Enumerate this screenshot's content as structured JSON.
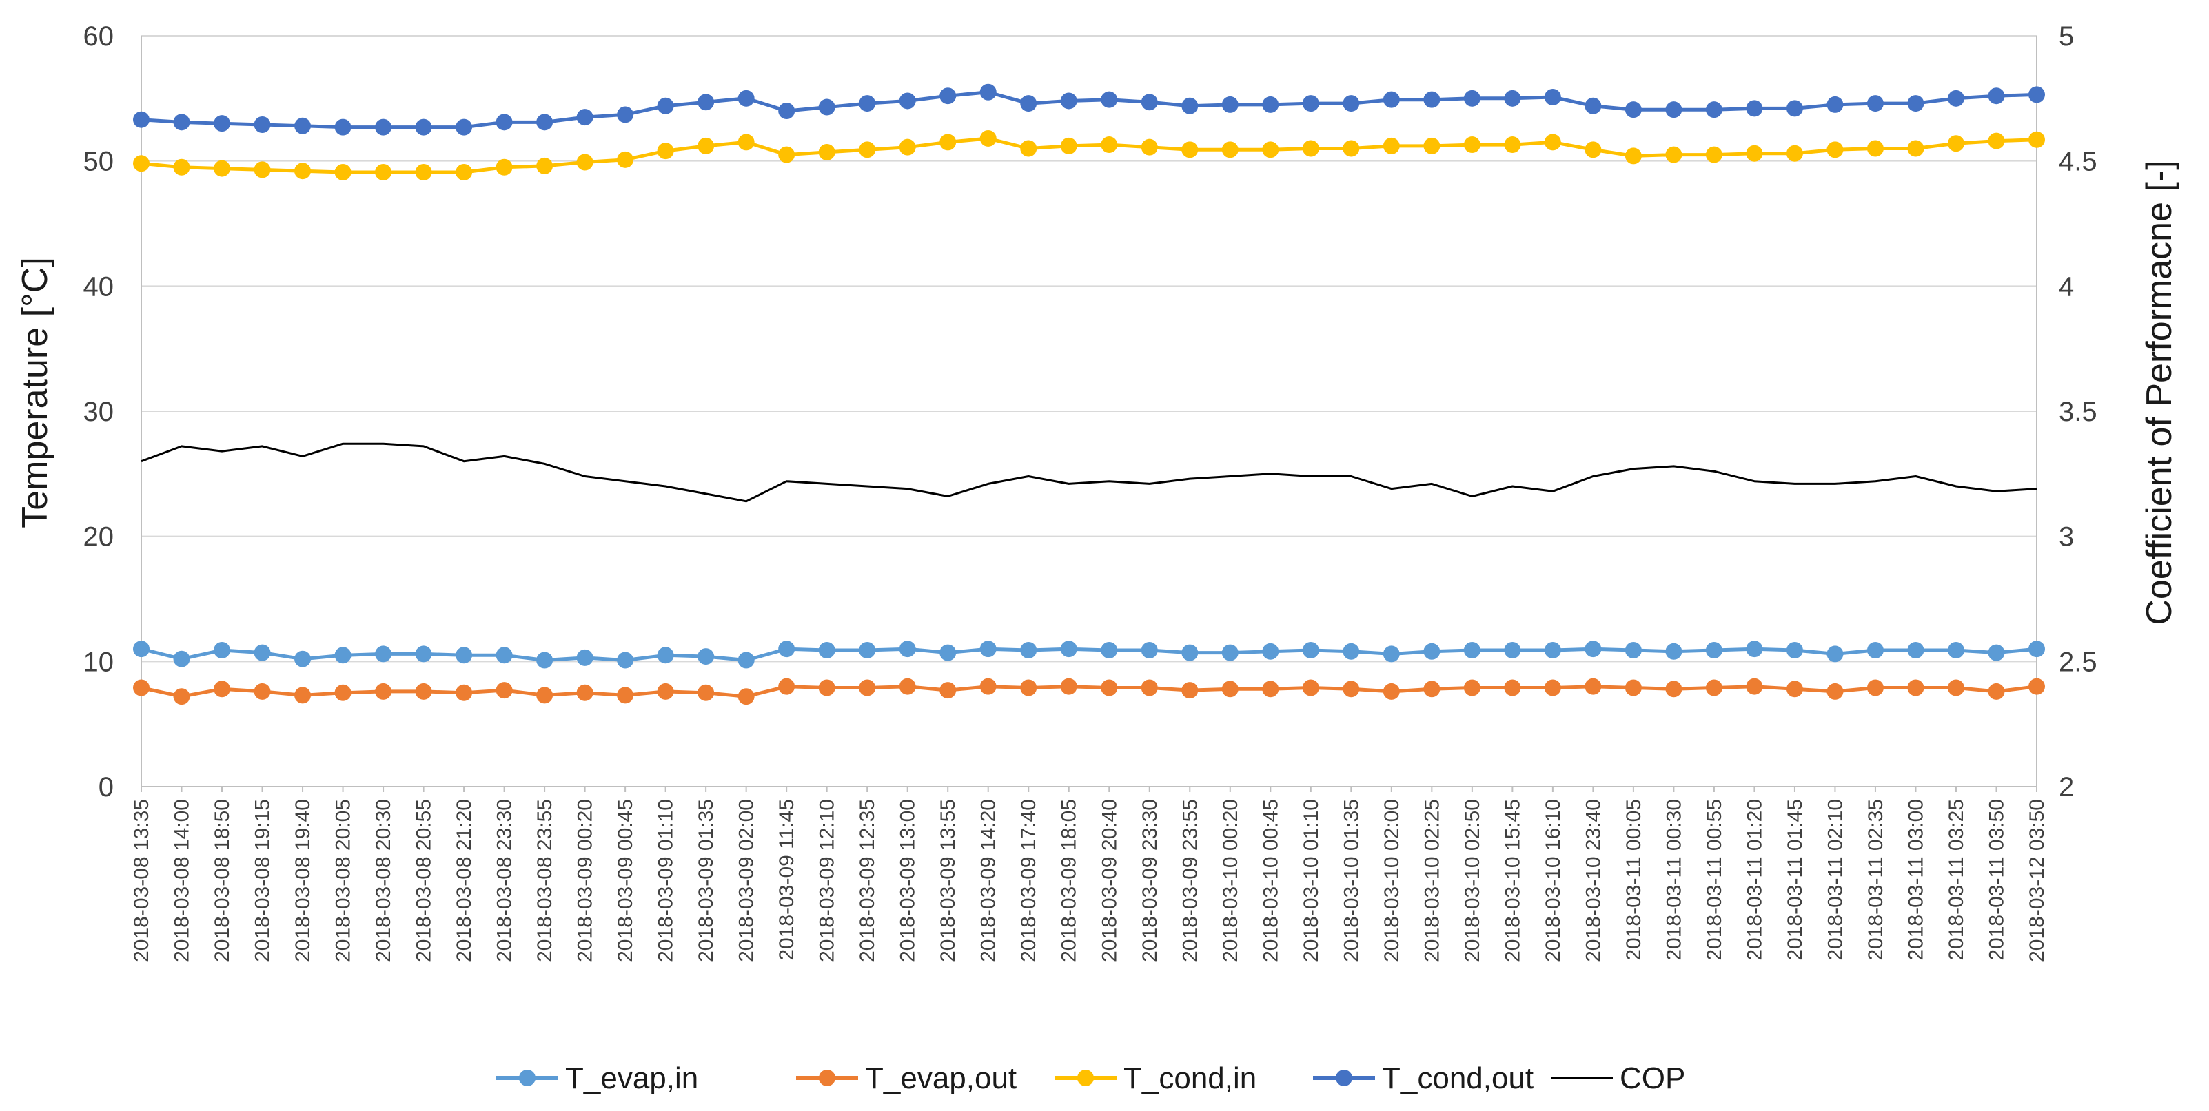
{
  "chart_data": {
    "type": "line",
    "title": "",
    "ylabel": "Temperature [°C]",
    "y2label": "Coefficient of Performacne [-]",
    "ylim": [
      0,
      60
    ],
    "yticks": [
      0,
      10,
      20,
      30,
      40,
      50,
      60
    ],
    "y2lim": [
      2,
      5
    ],
    "y2ticks": [
      "2",
      "2.5",
      "3",
      "3.5",
      "4",
      "4.5",
      "5"
    ],
    "grid": true,
    "legend_position": "bottom",
    "categories": [
      "2018-03-08 13:35",
      "2018-03-08 14:00",
      "2018-03-08 18:50",
      "2018-03-08 19:15",
      "2018-03-08 19:40",
      "2018-03-08 20:05",
      "2018-03-08 20:30",
      "2018-03-08 20:55",
      "2018-03-08 21:20",
      "2018-03-08 23:30",
      "2018-03-08 23:55",
      "2018-03-09 00:20",
      "2018-03-09 00:45",
      "2018-03-09 01:10",
      "2018-03-09 01:35",
      "2018-03-09 02:00",
      "2018-03-09 11:45",
      "2018-03-09 12:10",
      "2018-03-09 12:35",
      "2018-03-09 13:00",
      "2018-03-09 13:55",
      "2018-03-09 14:20",
      "2018-03-09 17:40",
      "2018-03-09 18:05",
      "2018-03-09 20:40",
      "2018-03-09 23:30",
      "2018-03-09 23:55",
      "2018-03-10 00:20",
      "2018-03-10 00:45",
      "2018-03-10 01:10",
      "2018-03-10 01:35",
      "2018-03-10 02:00",
      "2018-03-10 02:25",
      "2018-03-10 02:50",
      "2018-03-10 15:45",
      "2018-03-10 16:10",
      "2018-03-10 23:40",
      "2018-03-11 00:05",
      "2018-03-11 00:30",
      "2018-03-11 00:55",
      "2018-03-11 01:20",
      "2018-03-11 01:45",
      "2018-03-11 02:10",
      "2018-03-11 02:35",
      "2018-03-11 03:00",
      "2018-03-11 03:25",
      "2018-03-11 03:50",
      "2018-03-12 03:50"
    ],
    "series": [
      {
        "name": "T_evap,in",
        "axis": "left",
        "color": "#5B9BD5",
        "marker": true,
        "values": [
          11.0,
          10.2,
          10.9,
          10.7,
          10.2,
          10.5,
          10.6,
          10.6,
          10.5,
          10.5,
          10.1,
          10.3,
          10.1,
          10.5,
          10.4,
          10.1,
          11.0,
          10.9,
          10.9,
          11.0,
          10.7,
          11.0,
          10.9,
          11.0,
          10.9,
          10.9,
          10.7,
          10.7,
          10.8,
          10.9,
          10.8,
          10.6,
          10.8,
          10.9,
          10.9,
          10.9,
          11.0,
          10.9,
          10.8,
          10.9,
          11.0,
          10.9,
          10.6,
          10.9,
          10.9,
          10.9,
          10.7,
          11.0
        ]
      },
      {
        "name": "T_evap,out",
        "axis": "left",
        "color": "#ED7D31",
        "marker": true,
        "values": [
          7.9,
          7.2,
          7.8,
          7.6,
          7.3,
          7.5,
          7.6,
          7.6,
          7.5,
          7.7,
          7.3,
          7.5,
          7.3,
          7.6,
          7.5,
          7.2,
          8.0,
          7.9,
          7.9,
          8.0,
          7.7,
          8.0,
          7.9,
          8.0,
          7.9,
          7.9,
          7.7,
          7.8,
          7.8,
          7.9,
          7.8,
          7.6,
          7.8,
          7.9,
          7.9,
          7.9,
          8.0,
          7.9,
          7.8,
          7.9,
          8.0,
          7.8,
          7.6,
          7.9,
          7.9,
          7.9,
          7.6,
          8.0
        ]
      },
      {
        "name": "T_cond,in",
        "axis": "left",
        "color": "#FFC000",
        "marker": true,
        "values": [
          49.8,
          49.5,
          49.4,
          49.3,
          49.2,
          49.1,
          49.1,
          49.1,
          49.1,
          49.5,
          49.6,
          49.9,
          50.1,
          50.8,
          51.2,
          51.5,
          50.5,
          50.7,
          50.9,
          51.1,
          51.5,
          51.8,
          51.0,
          51.2,
          51.3,
          51.1,
          50.9,
          50.9,
          50.9,
          51.0,
          51.0,
          51.2,
          51.2,
          51.3,
          51.3,
          51.5,
          50.9,
          50.4,
          50.5,
          50.5,
          50.6,
          50.6,
          50.9,
          51.0,
          51.0,
          51.4,
          51.6,
          51.7
        ]
      },
      {
        "name": "T_cond,out",
        "axis": "left",
        "color": "#4472C4",
        "marker": true,
        "values": [
          53.3,
          53.1,
          53.0,
          52.9,
          52.8,
          52.7,
          52.7,
          52.7,
          52.7,
          53.1,
          53.1,
          53.5,
          53.7,
          54.4,
          54.7,
          55.0,
          54.0,
          54.3,
          54.6,
          54.8,
          55.2,
          55.5,
          54.6,
          54.8,
          54.9,
          54.7,
          54.4,
          54.5,
          54.5,
          54.6,
          54.6,
          54.9,
          54.9,
          55.0,
          55.0,
          55.1,
          54.4,
          54.1,
          54.1,
          54.1,
          54.2,
          54.2,
          54.5,
          54.6,
          54.6,
          55.0,
          55.2,
          55.3
        ]
      },
      {
        "name": "COP",
        "axis": "right",
        "color": "#000000",
        "marker": false,
        "values": [
          3.3,
          3.36,
          3.34,
          3.36,
          3.32,
          3.37,
          3.37,
          3.36,
          3.3,
          3.32,
          3.29,
          3.24,
          3.22,
          3.2,
          3.17,
          3.14,
          3.22,
          3.21,
          3.2,
          3.19,
          3.16,
          3.21,
          3.24,
          3.21,
          3.22,
          3.21,
          3.23,
          3.24,
          3.25,
          3.24,
          3.24,
          3.19,
          3.21,
          3.16,
          3.2,
          3.18,
          3.24,
          3.27,
          3.28,
          3.26,
          3.22,
          3.21,
          3.21,
          3.22,
          3.24,
          3.2,
          3.18,
          3.19
        ]
      }
    ]
  }
}
